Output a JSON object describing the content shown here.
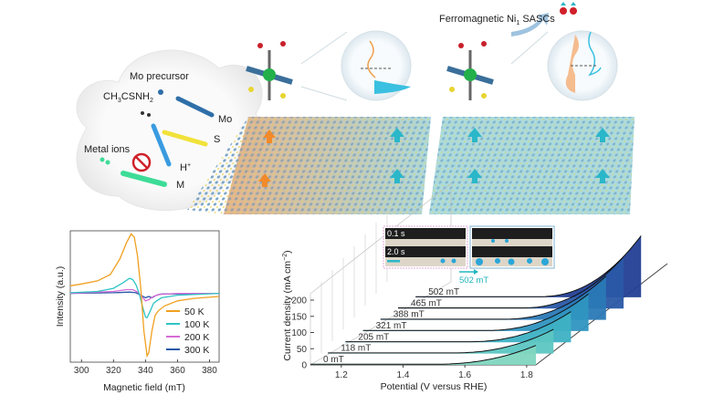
{
  "illustration": {
    "labels": {
      "mo_precursor": "Mo precursor",
      "thioacetamide_main": "CH",
      "thioacetamide_sub1": "3",
      "thioacetamide_mid": "CSNH",
      "thioacetamide_sub2": "2",
      "metal_ions": "Metal ions",
      "mo": "Mo",
      "s": "S",
      "h_plus": "H",
      "h_plus_sup": "+",
      "m": "M",
      "product_main": "Ferromagnetic Ni",
      "product_sub": "1",
      "product_tail": " SASCs"
    },
    "colors": {
      "mo_arrow": "#2f6fa8",
      "s_arrow": "#f1e23a",
      "h_arrow": "#3a9be0",
      "m_arrow": "#3ddc97",
      "sheet_left": "#d9b48c",
      "sheet_right": "#8fd0d3",
      "spin": "#2ab7c9",
      "spin_orange": "#f28a2a",
      "forbidden": "#d0202a"
    },
    "icons": [
      "forbidden-icon",
      "spin-up-arrow-icon",
      "magnifier-lens-icon",
      "curved-arrow-icon"
    ]
  },
  "chart_data": [
    {
      "type": "line",
      "title": "",
      "xlabel": "Magnetic field (mT)",
      "ylabel": "Intensity (a.u.)",
      "xlim": [
        293,
        386
      ],
      "ylim": [
        -1.1,
        1.0
      ],
      "xticks": [
        300,
        320,
        340,
        360,
        380
      ],
      "grid": false,
      "legend_position": "bottom-right",
      "series": [
        {
          "name": "50 K",
          "color": "#f0a020",
          "x": [
            293,
            300,
            310,
            318,
            324,
            328,
            331,
            333,
            335,
            337,
            339,
            341,
            342,
            344,
            346,
            348,
            352,
            360,
            370,
            386
          ],
          "y": [
            0.12,
            0.15,
            0.2,
            0.3,
            0.55,
            0.8,
            0.95,
            0.9,
            0.6,
            0.1,
            -0.6,
            -1.0,
            -0.95,
            -0.6,
            -0.35,
            -0.28,
            -0.2,
            -0.12,
            -0.08,
            -0.05
          ]
        },
        {
          "name": "100 K",
          "color": "#2ec4c4",
          "x": [
            293,
            310,
            320,
            326,
            330,
            332,
            334,
            336,
            338,
            340,
            341,
            343,
            345,
            347,
            350,
            360,
            386
          ],
          "y": [
            0.01,
            0.03,
            0.08,
            0.17,
            0.24,
            0.22,
            0.14,
            0.0,
            -0.2,
            -0.38,
            -0.39,
            -0.28,
            -0.16,
            -0.12,
            -0.07,
            -0.03,
            0.0
          ]
        },
        {
          "name": "200 K",
          "color": "#d66ad6",
          "x": [
            293,
            320,
            328,
            332,
            335,
            338,
            340,
            342,
            345,
            348,
            360,
            386
          ],
          "y": [
            0.0,
            0.03,
            0.06,
            0.06,
            0.02,
            -0.06,
            -0.12,
            -0.1,
            -0.05,
            -0.02,
            0.0,
            0.0
          ]
        },
        {
          "name": "300 K",
          "color": "#2a5aa8",
          "x": [
            293,
            320,
            330,
            334,
            337,
            340,
            342,
            344,
            347,
            350,
            386
          ],
          "y": [
            0.0,
            0.01,
            0.02,
            0.01,
            -0.03,
            -0.07,
            -0.05,
            -0.07,
            -0.03,
            -0.01,
            0.0
          ]
        }
      ]
    },
    {
      "type": "line",
      "title": "",
      "xlabel": "Potential (V versus RHE)",
      "ylabel": "Current density (mA cm",
      "ylabel_sup": "−2",
      "ylabel_tail": ")",
      "xlim": [
        1.1,
        1.83
      ],
      "ylim": [
        0,
        220
      ],
      "xticks": [
        1.2,
        1.4,
        1.6,
        1.8
      ],
      "yticks": [
        0,
        50,
        100,
        150,
        200
      ],
      "grid": true,
      "series_labels": [
        "0 mT",
        "118 mT",
        "205 mT",
        "321 mT",
        "388 mT",
        "465 mT",
        "502 mT"
      ],
      "series_end_values": [
        60,
        75,
        95,
        115,
        135,
        160,
        190
      ],
      "colors": [
        "#7fd6c0",
        "#5cc6c2",
        "#3eb1c4",
        "#2f95c0",
        "#2a79b6",
        "#2a58a6",
        "#233f94"
      ],
      "inset": {
        "times": [
          "0.1 s",
          "2.0 s"
        ],
        "field_label": "502 mT",
        "arrow_color": "#22b5c0"
      }
    }
  ]
}
